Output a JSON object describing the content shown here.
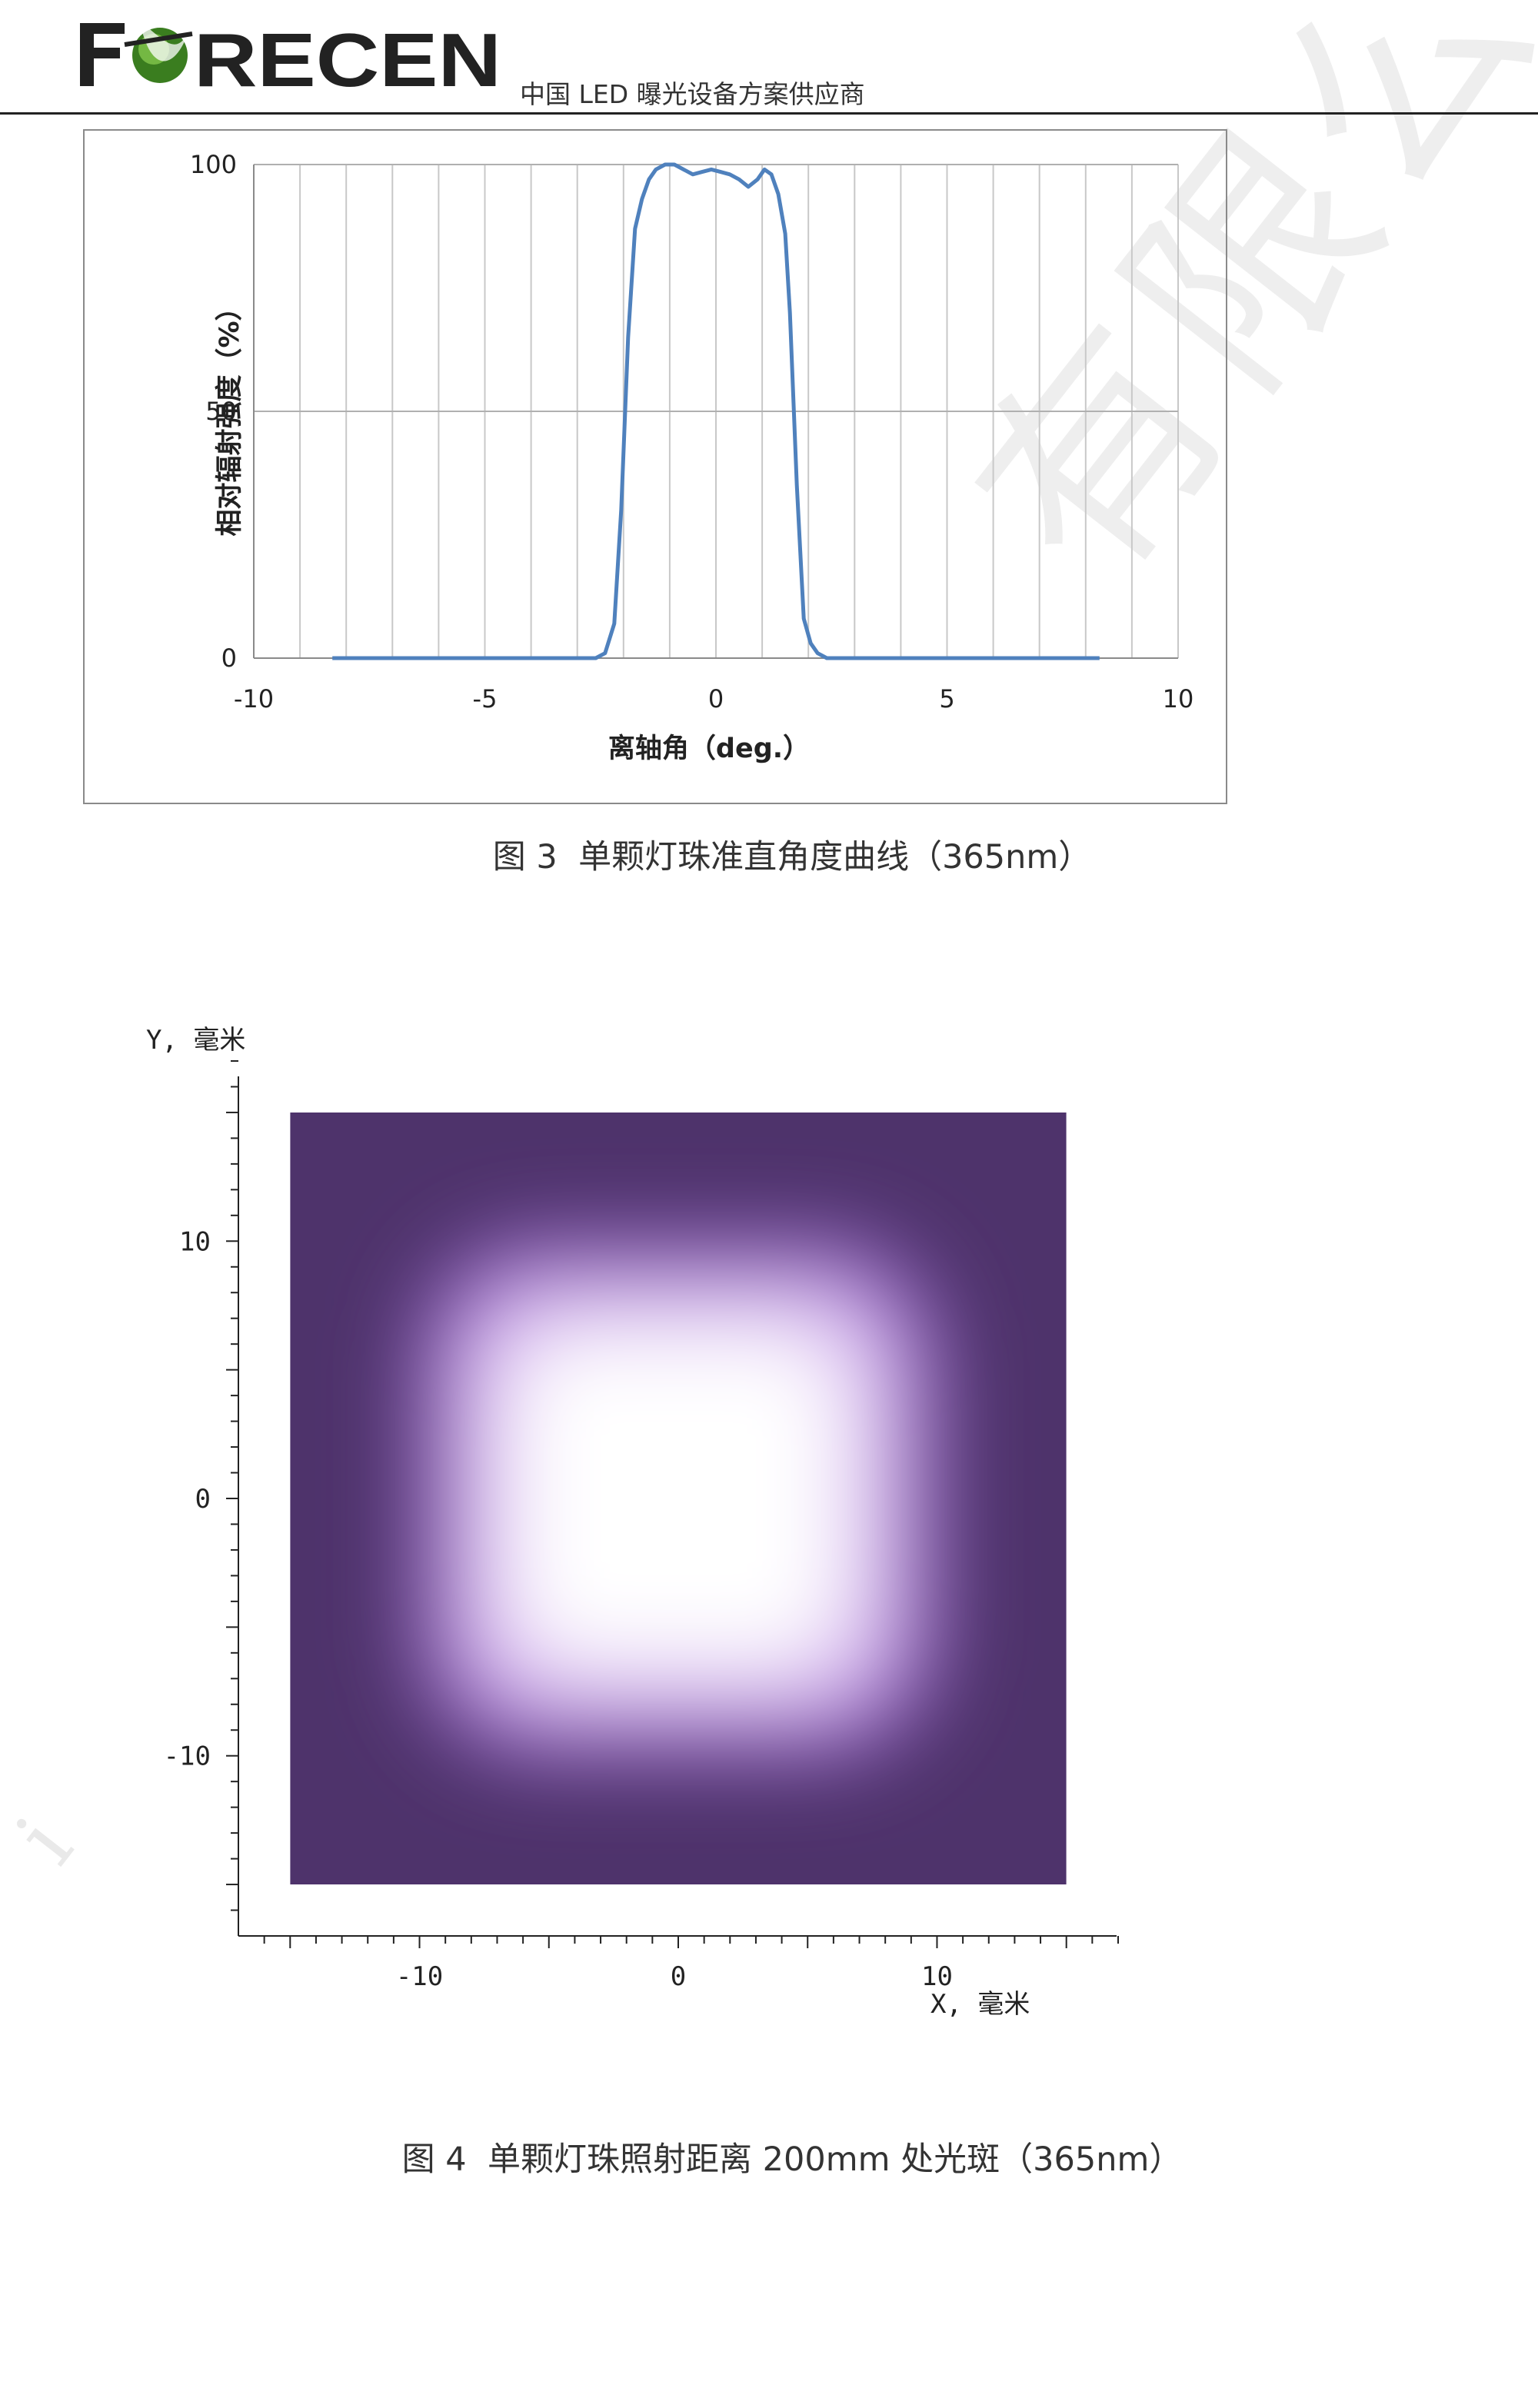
{
  "header": {
    "logo_text": "FORECEN",
    "tagline": "中国 LED 曝光设备方案供应商"
  },
  "watermark": {
    "text": "有限公司",
    "fragment": "i"
  },
  "colors": {
    "line": "#4f81bd",
    "grid": "#c8c8c8",
    "spot_background": "#4e336b",
    "spot_center": "#ffffff",
    "logo_dark": "#222222",
    "logo_green": "#3a7d1f"
  },
  "figure3": {
    "caption": "图 3  单颗灯珠准直角度曲线（365nm）",
    "chart_data": {
      "type": "line",
      "xlabel": "离轴角（deg.）",
      "ylabel": "相对辐射强度（%）",
      "xlim": [
        -10,
        10
      ],
      "ylim": [
        0,
        100
      ],
      "xticks": [
        "-10",
        "-5",
        "0",
        "5",
        "10"
      ],
      "yticks": [
        "100",
        "50",
        "0"
      ],
      "grid": "vertical every 1 deg, horizontal at 0/50/100",
      "series": [
        {
          "x": [
            -8.3,
            -2.6,
            -2.4,
            -2.2,
            -2.05,
            -1.9,
            -1.75,
            -1.6,
            -1.45,
            -1.3,
            -1.1,
            -0.9,
            -0.7,
            -0.5,
            -0.3,
            -0.1,
            0.1,
            0.3,
            0.5,
            0.7,
            0.9,
            1.05,
            1.2,
            1.35,
            1.5,
            1.6,
            1.75,
            1.9,
            2.05,
            2.2,
            2.4,
            2.6,
            8.3
          ],
          "y": [
            0,
            0,
            1,
            7,
            30,
            65,
            87,
            93,
            97,
            99,
            100,
            100,
            99,
            98,
            98.5,
            99,
            98.5,
            98,
            97,
            95.5,
            97,
            99,
            98,
            94,
            86,
            70,
            35,
            8,
            3,
            1,
            0,
            0,
            0
          ]
        }
      ]
    }
  },
  "figure4": {
    "caption": "图 4  单颗灯珠照射距离 200mm 处光斑（365nm）",
    "chart_data": {
      "type": "heatmap",
      "xlabel": "X, 毫米",
      "ylabel": "Y, 毫米",
      "xlim": [
        -17,
        17
      ],
      "ylim": [
        -17,
        17
      ],
      "xticks": [
        "-10",
        "0",
        "10"
      ],
      "yticks": [
        "10",
        "0",
        "-10"
      ],
      "extent": [
        -15,
        15,
        -15,
        15
      ],
      "spot": {
        "plateau_halfwidth": 6.5,
        "edge_halfwidth": 10,
        "shape": "rounded square"
      }
    }
  }
}
